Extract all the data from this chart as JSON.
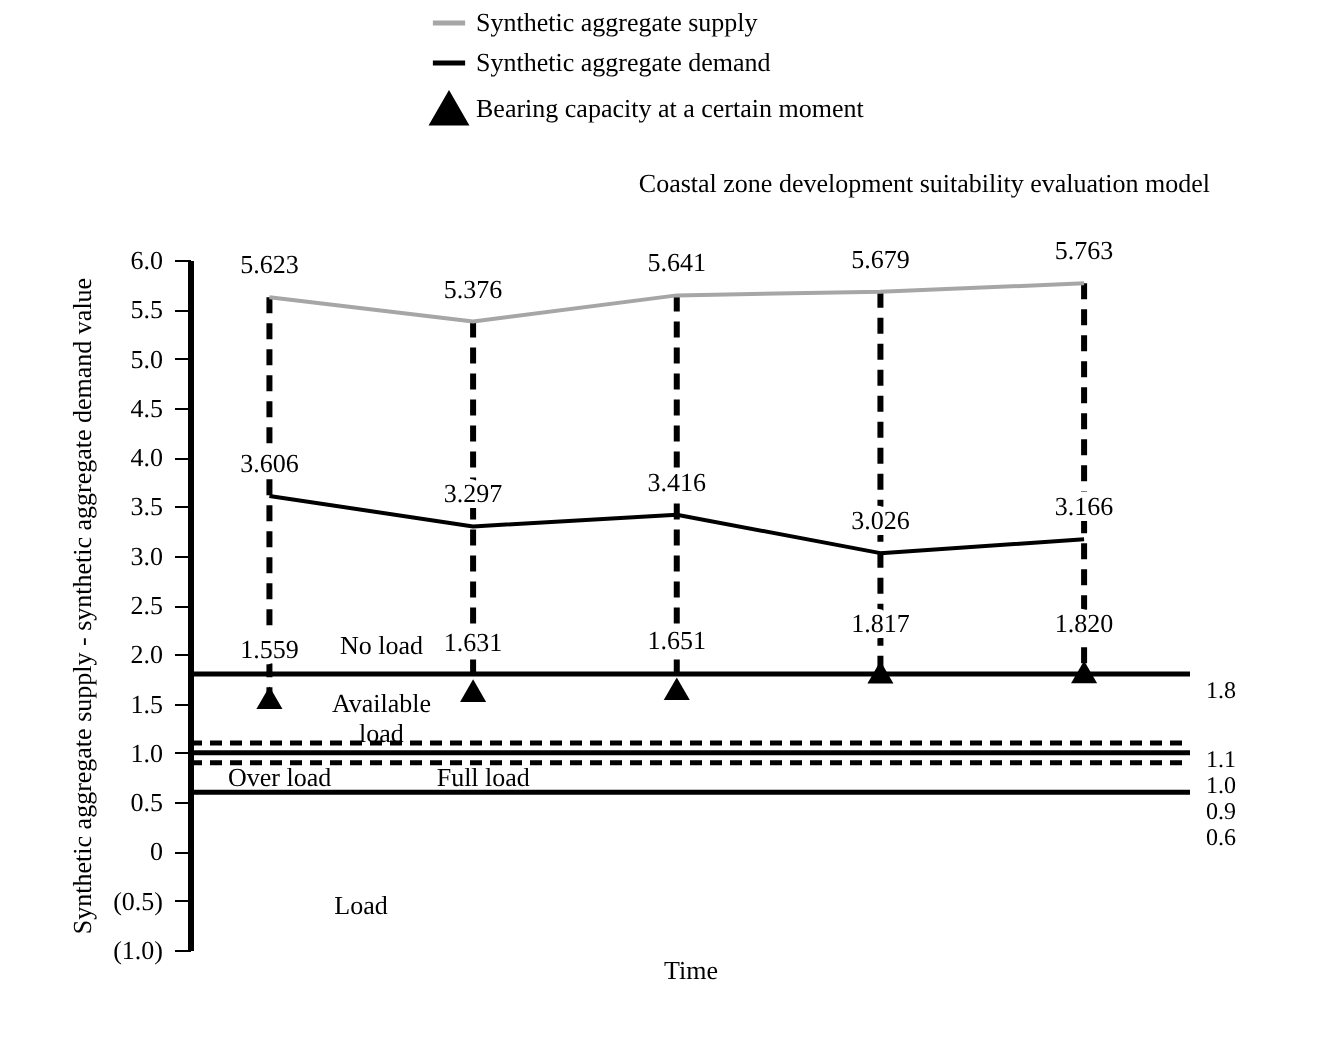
{
  "chart_data": {
    "type": "line",
    "title": "Coastal zone development suitability evaluation model",
    "xlabel": "Time",
    "ylabel": "Synthetic aggregate supply - synthetic aggregate demand value",
    "categories": [
      null,
      null,
      null,
      null,
      null
    ],
    "series": [
      {
        "name": "Synthetic aggregate supply",
        "color": "#a6a6a6",
        "values": [
          5.623,
          5.376,
          5.641,
          5.679,
          5.763
        ],
        "value_labels": [
          "5.623",
          "5.376",
          "5.641",
          "5.679",
          "5.763"
        ]
      },
      {
        "name": "Synthetic aggregate demand",
        "color": "#000000",
        "values": [
          3.606,
          3.297,
          3.416,
          3.026,
          3.166
        ],
        "value_labels": [
          "3.606",
          "3.297",
          "3.416",
          "3.026",
          "3.166"
        ]
      },
      {
        "name": "Bearing capacity at a certain moment",
        "type": "scatter",
        "marker": "triangle",
        "color": "#000000",
        "values": [
          1.559,
          1.631,
          1.651,
          1.817,
          1.82
        ],
        "value_labels": [
          "1.559",
          "1.631",
          "1.651",
          "1.817",
          "1.820"
        ]
      }
    ],
    "ylim": [
      -1.0,
      6.0
    ],
    "yticks": [
      {
        "value": -1.0,
        "label": "(1.0)"
      },
      {
        "value": -0.5,
        "label": "(0.5)"
      },
      {
        "value": 0,
        "label": "0"
      },
      {
        "value": 0.5,
        "label": "0.5"
      },
      {
        "value": 1.0,
        "label": "1.0"
      },
      {
        "value": 1.5,
        "label": "1.5"
      },
      {
        "value": 2.0,
        "label": "2.0"
      },
      {
        "value": 2.5,
        "label": "2.5"
      },
      {
        "value": 3.0,
        "label": "3.0"
      },
      {
        "value": 3.5,
        "label": "3.5"
      },
      {
        "value": 4.0,
        "label": "4.0"
      },
      {
        "value": 4.5,
        "label": "4.5"
      },
      {
        "value": 5.0,
        "label": "5.0"
      },
      {
        "value": 5.5,
        "label": "5.5"
      },
      {
        "value": 6.0,
        "label": "6.0"
      }
    ],
    "ref_lines": [
      {
        "axis": "y",
        "value": 1.8,
        "label": "1.8",
        "line_style": "solid",
        "color": "#000000"
      },
      {
        "axis": "y",
        "value": 1.1,
        "label": "1.1",
        "line_style": "dashed",
        "color": "#000000"
      },
      {
        "axis": "y",
        "value": 1.0,
        "label": "1.0",
        "line_style": "solid",
        "color": "#000000"
      },
      {
        "axis": "y",
        "value": 0.9,
        "label": "0.9",
        "line_style": "dashed",
        "color": "#000000"
      },
      {
        "axis": "y",
        "value": 0.6,
        "label": "0.6",
        "line_style": "solid",
        "color": "#000000"
      }
    ],
    "annotations": [
      "No load",
      "Available load",
      "Over load",
      "Full load",
      "Load"
    ],
    "tick_labels": "y",
    "grid": false,
    "legend": "top",
    "line_style": "solid"
  }
}
